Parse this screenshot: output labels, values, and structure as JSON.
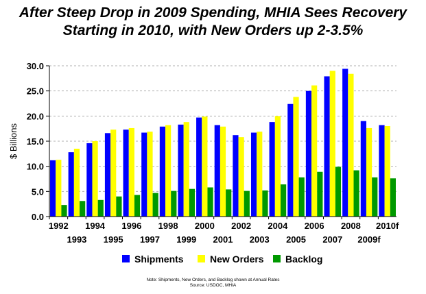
{
  "title_lines": [
    "After Steep Drop in 2009 Spending, MHIA Sees Recovery",
    "Starting in 2010, with New Orders up 2-3.5%"
  ],
  "note_lines": [
    "Note:  Shipments, New Orders, and Backlog shown at Annual Rates",
    "Source:  USDOC, MHIA"
  ],
  "colors": {
    "shipments": "#0000ff",
    "new_orders": "#ffff00",
    "backlog": "#009900"
  },
  "chart_data": {
    "type": "bar",
    "categories": [
      "1992",
      "1993",
      "1994",
      "1995",
      "1996",
      "1997",
      "1998",
      "1999",
      "2000",
      "2001",
      "2002",
      "2003",
      "2004",
      "2005",
      "2006",
      "2007",
      "2008",
      "2009f",
      "2010f"
    ],
    "series": [
      {
        "name": "Shipments",
        "values": [
          11.2,
          12.8,
          14.6,
          16.6,
          17.3,
          16.7,
          17.9,
          18.3,
          19.7,
          18.2,
          16.2,
          16.7,
          18.8,
          22.4,
          25.0,
          27.9,
          29.4,
          19.0,
          18.2
        ]
      },
      {
        "name": "New Orders",
        "values": [
          11.3,
          13.5,
          15.0,
          17.3,
          17.6,
          16.9,
          18.2,
          18.8,
          19.9,
          17.9,
          15.8,
          16.9,
          20.0,
          23.8,
          26.1,
          29.0,
          28.4,
          17.6,
          18.0
        ]
      },
      {
        "name": "Backlog",
        "values": [
          2.3,
          3.1,
          3.3,
          4.0,
          4.3,
          4.7,
          5.1,
          5.5,
          5.8,
          5.4,
          5.1,
          5.2,
          6.4,
          7.8,
          8.9,
          9.9,
          9.2,
          7.8,
          7.6
        ]
      }
    ],
    "ylabel": "$ Billions",
    "ylim": [
      0,
      30
    ],
    "yticks": [
      "0.0",
      "5.0",
      "10.0",
      "15.0",
      "20.0",
      "25.0",
      "30.0"
    ],
    "grid": true,
    "legend": "bottom"
  }
}
